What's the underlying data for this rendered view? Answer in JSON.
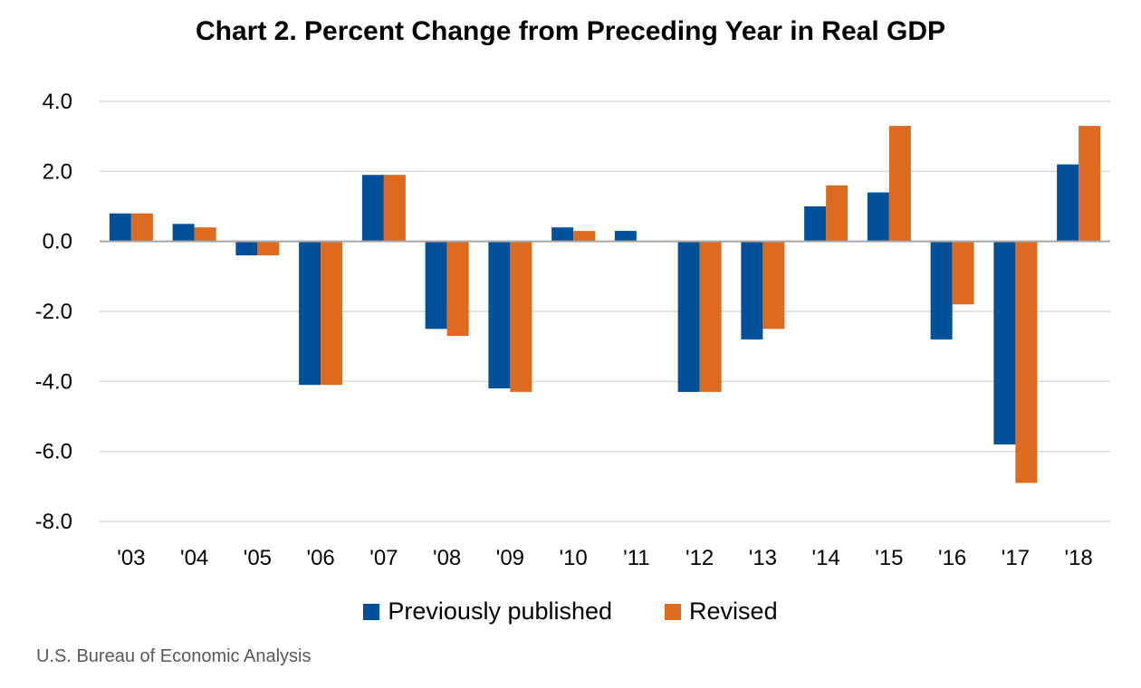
{
  "chart_data": {
    "type": "bar",
    "title": "Chart 2. Percent Change from Preceding Year in Real GDP",
    "xlabel": "",
    "ylabel": "",
    "categories": [
      "'03",
      "'04",
      "'05",
      "'06",
      "'07",
      "'08",
      "'09",
      "'10",
      "'11",
      "'12",
      "'13",
      "'14",
      "'15",
      "'16",
      "'17",
      "'18"
    ],
    "series": [
      {
        "name": "Previously published",
        "color": "#00519A",
        "values": [
          0.8,
          0.5,
          -0.4,
          -4.1,
          1.9,
          -2.5,
          -4.2,
          0.4,
          0.3,
          -4.3,
          -2.8,
          1.0,
          1.4,
          -2.8,
          -5.8,
          2.2
        ]
      },
      {
        "name": "Revised",
        "color": "#DD6A1F",
        "values": [
          0.8,
          0.4,
          -0.4,
          -4.1,
          1.9,
          -2.7,
          -4.3,
          0.3,
          0.0,
          -4.3,
          -2.5,
          1.6,
          3.3,
          -1.8,
          -6.9,
          3.3
        ]
      }
    ],
    "ylim": [
      -8,
      4
    ],
    "yticks": [
      "4.0",
      "2.0",
      "0.0",
      "-2.0",
      "-4.0",
      "-6.0",
      "-8.0"
    ],
    "ytick_values": [
      4,
      2,
      0,
      -2,
      -4,
      -6,
      -8
    ],
    "grid": true,
    "legend_position": "bottom"
  },
  "source": "U.S. Bureau of Economic Analysis"
}
